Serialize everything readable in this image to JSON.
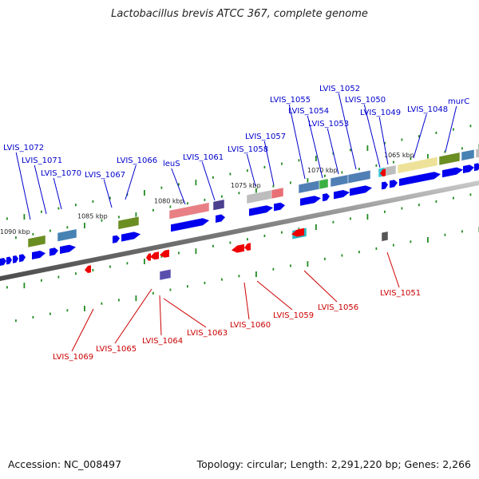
{
  "title": "Lactobacillus brevis ATCC 367, complete genome",
  "footer": {
    "accession": "Accession: NC_008497",
    "topology": "Topology: circular; Length: 2,291,220 bp; Genes: 2,266"
  },
  "scale_labels": [
    "1090 kbp",
    "1085 kbp",
    "1080 kbp",
    "1075 kbp",
    "1070 kbp",
    "1065 kbp"
  ],
  "genes_top": [
    "LVIS_1072",
    "LVIS_1071",
    "LVIS_1070",
    "LVIS_1067",
    "LVIS_1066",
    "leuS",
    "LVIS_1061",
    "LVIS_1058",
    "LVIS_1057",
    "LVIS_1055",
    "LVIS_1054",
    "LVIS_1053",
    "LVIS_1052",
    "LVIS_1050",
    "LVIS_1049",
    "LVIS_1048",
    "murC"
  ],
  "genes_bottom": [
    "LVIS_1069",
    "LVIS_1065",
    "LVIS_1064",
    "LVIS_1063",
    "LVIS_1060",
    "LVIS_1059",
    "LVIS_1056",
    "LVIS_1051"
  ],
  "colors": {
    "forward_label": "#0000cc",
    "reverse_label": "#cc0000",
    "forward_arrow": "#0000ee",
    "reverse_arrow": "#ee0000",
    "tick": "#228b22",
    "backbone": "#777777"
  }
}
